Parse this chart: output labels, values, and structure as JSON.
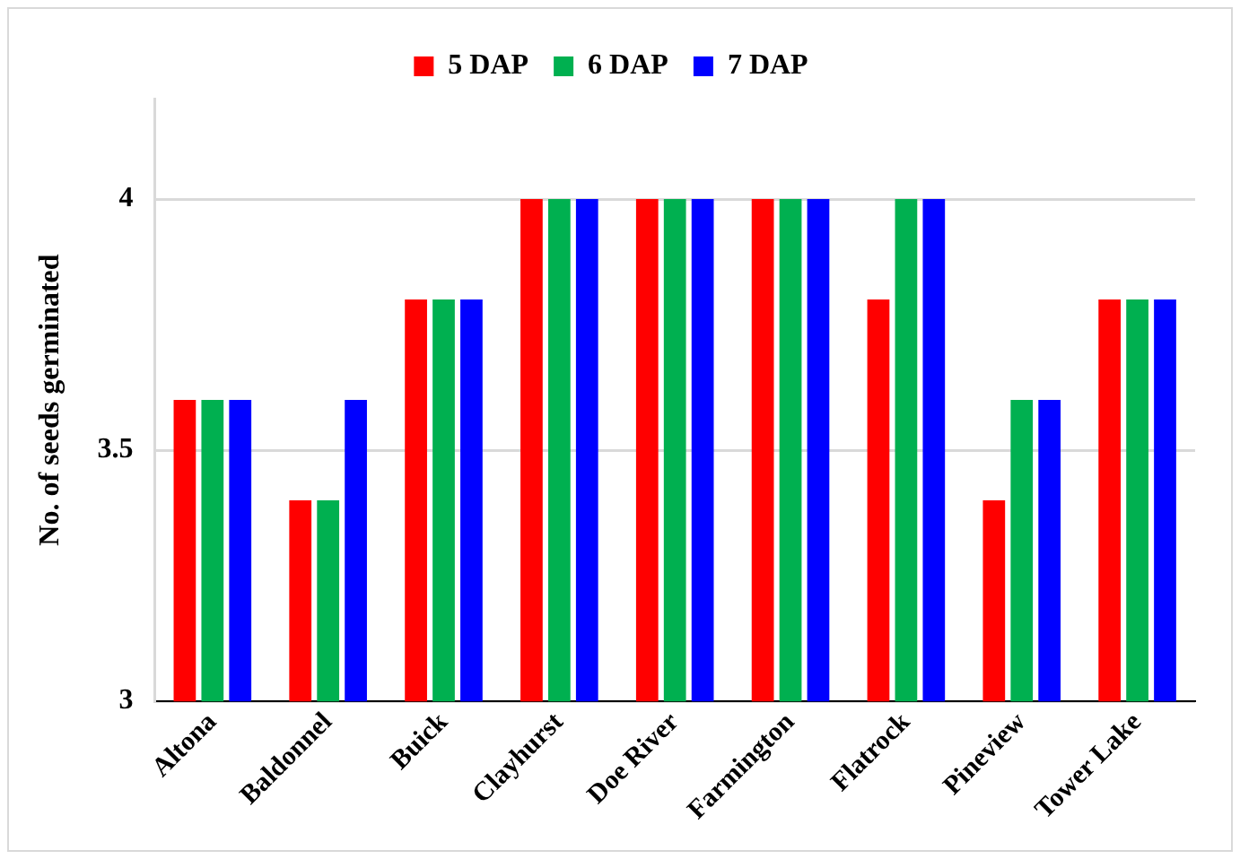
{
  "chart_data": {
    "type": "bar",
    "ylabel": "No. of seeds germinated",
    "categories": [
      "Altona",
      "Baldonnel",
      "Buick",
      "Clayhurst",
      "Doe River",
      "Farmington",
      "Flatrock",
      "Pineview",
      "Tower Lake"
    ],
    "series": [
      {
        "name": "5 DAP",
        "color": "#ff0000",
        "values": [
          3.6,
          3.4,
          3.8,
          4,
          4,
          4,
          3.8,
          3.4,
          3.8
        ]
      },
      {
        "name": "6 DAP",
        "color": "#00b050",
        "values": [
          3.6,
          3.4,
          3.8,
          4,
          4,
          4,
          4,
          3.6,
          3.8
        ]
      },
      {
        "name": "7 DAP",
        "color": "#0000ff",
        "values": [
          3.6,
          3.6,
          3.8,
          4,
          4,
          4,
          4,
          3.6,
          3.8
        ]
      }
    ],
    "ylim": [
      3,
      4.2
    ],
    "yticks": [
      3,
      3.5,
      4
    ],
    "grid": "y",
    "legend": "top"
  }
}
